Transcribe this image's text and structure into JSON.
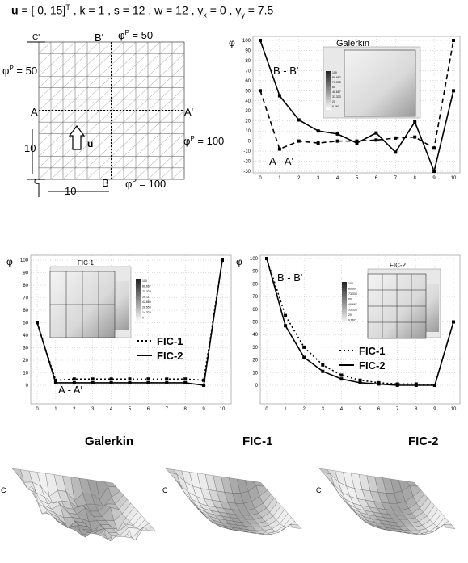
{
  "header": {
    "u_label": "u",
    "u_value": " = [ 0, 15]",
    "u_sup": "T",
    "rest": "  , k = 1 , s = 12 , w = 12 , γ",
    "gx_sub": "x",
    "gx_val": " = 0 , γ",
    "gy_sub": "y",
    "gy_val": " = 7.5"
  },
  "mesh": {
    "labels": {
      "c_top": "C'",
      "c_bot": "C",
      "b_top": "B'",
      "b_bot": "B",
      "a_left": "A",
      "a_right": "A'",
      "phi50_top": "φ",
      "phi50_top_sup": "P",
      "phi50_top_val": " = 50",
      "phi50_left": "φ",
      "phi50_left_sup": "P",
      "phi50_left_val": " = 50",
      "phi100_right": "φ",
      "phi100_right_sup": "P",
      "phi100_right_val": " = 100",
      "phi100_bot": "φ",
      "phi100_bot_sup": "P",
      "phi100_bot_val": " = 100",
      "u_vec": "u",
      "dim_v": "10",
      "dim_h": "10"
    }
  },
  "titles_3d": [
    "Galerkin",
    "FIC-1",
    "FIC-2"
  ],
  "chart_data": [
    {
      "type": "line",
      "phi_label": "φ",
      "inset_title": "Galerkin",
      "x": [
        0,
        1,
        2,
        3,
        4,
        5,
        6,
        7,
        8,
        9,
        10
      ],
      "xlim": [
        0,
        10
      ],
      "ylim": [
        -30,
        100
      ],
      "yticks": [
        -30,
        -20,
        -10,
        0,
        10,
        20,
        30,
        40,
        50,
        60,
        70,
        80,
        90,
        100
      ],
      "series": [
        {
          "name": "B - B'",
          "style": "solid",
          "values": [
            100,
            45,
            21,
            10,
            7,
            -2,
            8,
            -11,
            19,
            -30,
            50
          ]
        },
        {
          "name": "A - A'",
          "style": "dashed",
          "values": [
            50,
            -8,
            0,
            -2,
            0,
            0,
            1,
            3,
            4,
            -7,
            100
          ]
        }
      ],
      "inset_legend": [
        "100",
        "86.667",
        "73.333",
        "60",
        "46.667",
        "33.333",
        "20",
        "6.667"
      ]
    },
    {
      "type": "line",
      "phi_label": "φ",
      "inset_title": "FIC-1",
      "x": [
        0,
        1,
        2,
        3,
        4,
        5,
        6,
        7,
        8,
        9,
        10
      ],
      "xlim": [
        0,
        10
      ],
      "ylim": [
        0,
        100
      ],
      "yticks": [
        0,
        10,
        20,
        30,
        40,
        50,
        60,
        70,
        80,
        90,
        100
      ],
      "curve_label": "A - A'",
      "series": [
        {
          "name": "FIC-1",
          "style": "dotted",
          "values": [
            50,
            4,
            5,
            5,
            5,
            5,
            5,
            5,
            5,
            4,
            100
          ]
        },
        {
          "name": "FIC-2",
          "style": "solid",
          "values": [
            50,
            2,
            2,
            2,
            2,
            2,
            2,
            2,
            2,
            0,
            100
          ]
        }
      ],
      "inset_legend": [
        "100",
        "88.667",
        "71.333",
        "58.111",
        "42.889",
        "28.556",
        "14.222",
        "0"
      ]
    },
    {
      "type": "line",
      "phi_label": "φ",
      "inset_title": "FIC-2",
      "x": [
        0,
        1,
        2,
        3,
        4,
        5,
        6,
        7,
        8,
        9,
        10
      ],
      "xlim": [
        0,
        10
      ],
      "ylim": [
        0,
        100
      ],
      "yticks": [
        0,
        10,
        20,
        30,
        40,
        50,
        60,
        70,
        80,
        90,
        100
      ],
      "curve_label": "B - B'",
      "series": [
        {
          "name": "FIC-1",
          "style": "dotted",
          "values": [
            100,
            55,
            30,
            16,
            8,
            4,
            2,
            1,
            1,
            0,
            50
          ]
        },
        {
          "name": "FIC-2",
          "style": "solid",
          "values": [
            100,
            47,
            22,
            11,
            5,
            2,
            1,
            0,
            0,
            0,
            50
          ]
        }
      ],
      "inset_legend": [
        "100",
        "86.667",
        "73.333",
        "60",
        "46.667",
        "33.333",
        "20",
        "6.667"
      ]
    }
  ]
}
